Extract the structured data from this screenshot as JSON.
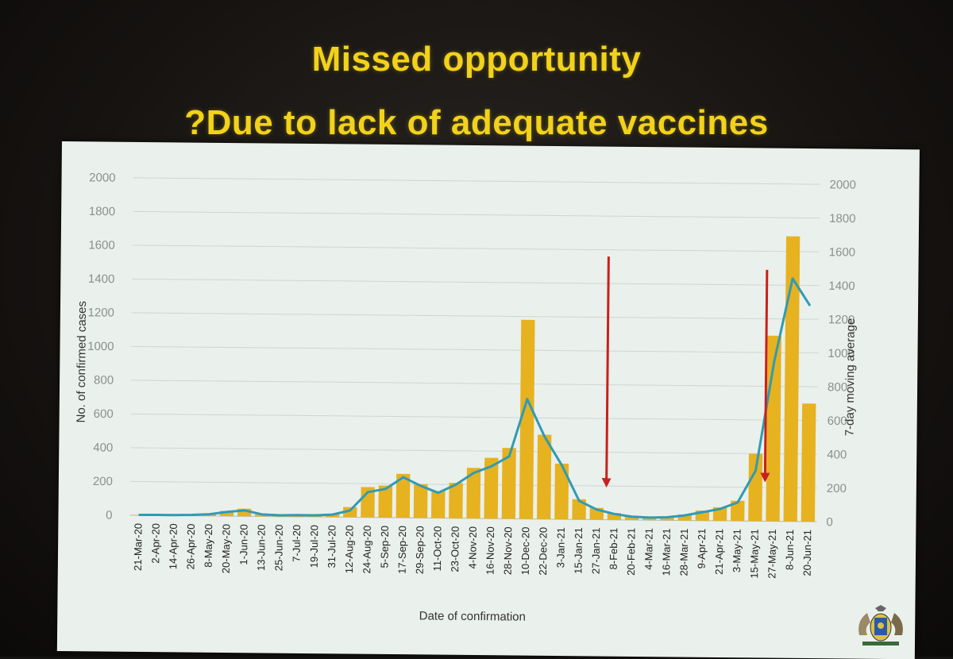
{
  "slide": {
    "title_line1": "Missed opportunity",
    "title_line2": "?Due to lack of adequate vaccines"
  },
  "chart_data": {
    "type": "bar",
    "xlabel": "Date of confirmation",
    "ylabel": "No. of confirmed cases",
    "y2label": "7-day moving average",
    "ylim": [
      0,
      2000
    ],
    "y2lim": [
      0,
      2000
    ],
    "yticks": [
      0,
      200,
      400,
      600,
      800,
      1000,
      1200,
      1400,
      1600,
      1800,
      2000
    ],
    "y2ticks": [
      0,
      200,
      400,
      600,
      800,
      1000,
      1200,
      1400,
      1600,
      1800,
      2000
    ],
    "grid": true,
    "colors": {
      "bars": "#e6b220",
      "moving_average": "#2f9bb5",
      "arrows": "#c8201c"
    },
    "x_tick_labels": [
      "21-Mar-20",
      "2-Apr-20",
      "14-Apr-20",
      "26-Apr-20",
      "8-May-20",
      "20-May-20",
      "1-Jun-20",
      "13-Jun-20",
      "25-Jun-20",
      "7-Jul-20",
      "19-Jul-20",
      "31-Jul-20",
      "12-Aug-20",
      "24-Aug-20",
      "5-Sep-20",
      "17-Sep-20",
      "29-Sep-20",
      "11-Oct-20",
      "23-Oct-20",
      "4-Nov-20",
      "16-Nov-20",
      "28-Nov-20",
      "10-Dec-20",
      "22-Dec-20",
      "3-Jan-21",
      "15-Jan-21",
      "27-Jan-21",
      "8-Feb-21",
      "20-Feb-21",
      "4-Mar-21",
      "16-Mar-21",
      "28-Mar-21",
      "9-Apr-21",
      "21-Apr-21",
      "3-May-21",
      "15-May-21",
      "27-May-21",
      "8-Jun-21",
      "20-Jun-21"
    ],
    "series": [
      {
        "name": "No. of confirmed cases",
        "kind": "bar",
        "x": [
          "21-Mar-20",
          "2-Apr-20",
          "14-Apr-20",
          "26-Apr-20",
          "8-May-20",
          "20-May-20",
          "1-Jun-20",
          "13-Jun-20",
          "25-Jun-20",
          "7-Jul-20",
          "19-Jul-20",
          "31-Jul-20",
          "12-Aug-20",
          "24-Aug-20",
          "5-Sep-20",
          "17-Sep-20",
          "29-Sep-20",
          "11-Oct-20",
          "23-Oct-20",
          "4-Nov-20",
          "16-Nov-20",
          "28-Nov-20",
          "10-Dec-20",
          "22-Dec-20",
          "3-Jan-21",
          "15-Jan-21",
          "27-Jan-21",
          "8-Feb-21",
          "20-Feb-21",
          "4-Mar-21",
          "16-Mar-21",
          "28-Mar-21",
          "9-Apr-21",
          "21-Apr-21",
          "3-May-21",
          "15-May-21",
          "27-May-21",
          "8-Jun-21",
          "20-Jun-21"
        ],
        "values": [
          2,
          5,
          3,
          6,
          12,
          30,
          45,
          15,
          10,
          15,
          12,
          20,
          60,
          180,
          190,
          260,
          200,
          160,
          210,
          300,
          360,
          420,
          1180,
          500,
          330,
          120,
          70,
          40,
          25,
          18,
          20,
          35,
          60,
          80,
          120,
          400,
          1100,
          1690,
          700
        ]
      },
      {
        "name": "7-day moving average",
        "kind": "line",
        "x": [
          "21-Mar-20",
          "2-Apr-20",
          "14-Apr-20",
          "26-Apr-20",
          "8-May-20",
          "20-May-20",
          "1-Jun-20",
          "13-Jun-20",
          "25-Jun-20",
          "7-Jul-20",
          "19-Jul-20",
          "31-Jul-20",
          "12-Aug-20",
          "24-Aug-20",
          "5-Sep-20",
          "17-Sep-20",
          "29-Sep-20",
          "11-Oct-20",
          "23-Oct-20",
          "4-Nov-20",
          "16-Nov-20",
          "28-Nov-20",
          "10-Dec-20",
          "22-Dec-20",
          "3-Jan-21",
          "15-Jan-21",
          "27-Jan-21",
          "8-Feb-21",
          "20-Feb-21",
          "4-Mar-21",
          "16-Mar-21",
          "28-Mar-21",
          "9-Apr-21",
          "21-Apr-21",
          "3-May-21",
          "15-May-21",
          "27-May-21",
          "8-Jun-21",
          "20-Jun-21"
        ],
        "values": [
          2,
          3,
          3,
          5,
          10,
          25,
          35,
          12,
          8,
          10,
          10,
          15,
          40,
          150,
          170,
          240,
          190,
          150,
          200,
          270,
          310,
          370,
          710,
          490,
          320,
          110,
          60,
          35,
          20,
          15,
          18,
          30,
          50,
          70,
          110,
          300,
          950,
          1440,
          1280
        ]
      }
    ],
    "annotations": [
      {
        "type": "arrow",
        "x": "27-Jan-21",
        "from_y": 1560,
        "to_y": 200
      },
      {
        "type": "arrow",
        "x": "15-May-21",
        "from_y": 1490,
        "to_y": 240
      }
    ]
  }
}
